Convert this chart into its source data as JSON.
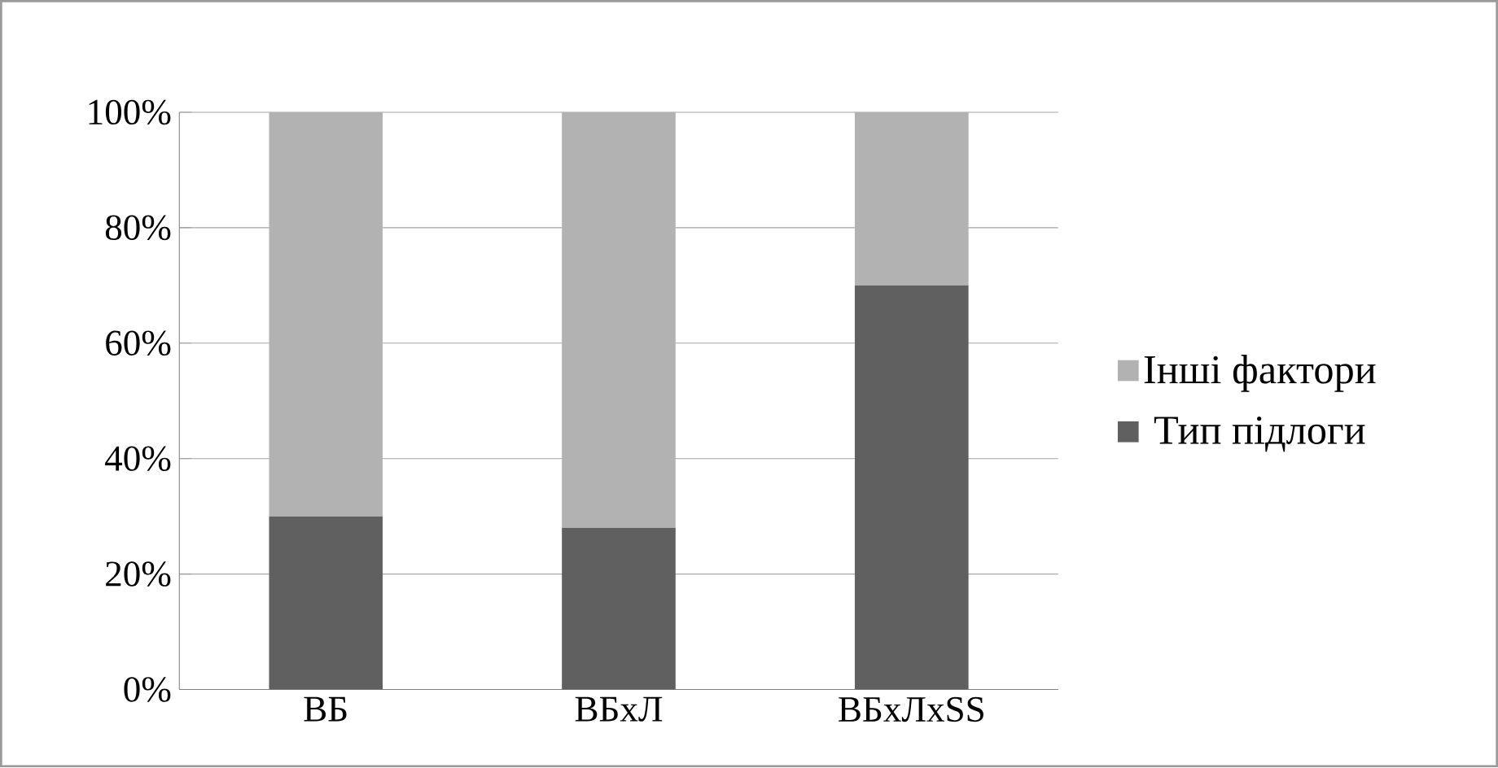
{
  "chart_data": {
    "type": "bar",
    "stacked": true,
    "categories": [
      "ВБ",
      "ВБхЛ",
      "ВБхЛхSS"
    ],
    "series": [
      {
        "name": "Тип підлоги",
        "color": "#606060",
        "values": [
          30,
          28,
          70
        ]
      },
      {
        "name": "Інші фактори",
        "color": "#b2b2b2",
        "values": [
          70,
          72,
          30
        ]
      }
    ],
    "ylim": [
      0,
      100
    ],
    "yticks": [
      {
        "value": 0,
        "label": "0%"
      },
      {
        "value": 20,
        "label": "20%"
      },
      {
        "value": 40,
        "label": "40%"
      },
      {
        "value": 60,
        "label": "60%"
      },
      {
        "value": 80,
        "label": "80%"
      },
      {
        "value": 100,
        "label": "100%"
      }
    ],
    "grid": "y",
    "legend": "right"
  }
}
